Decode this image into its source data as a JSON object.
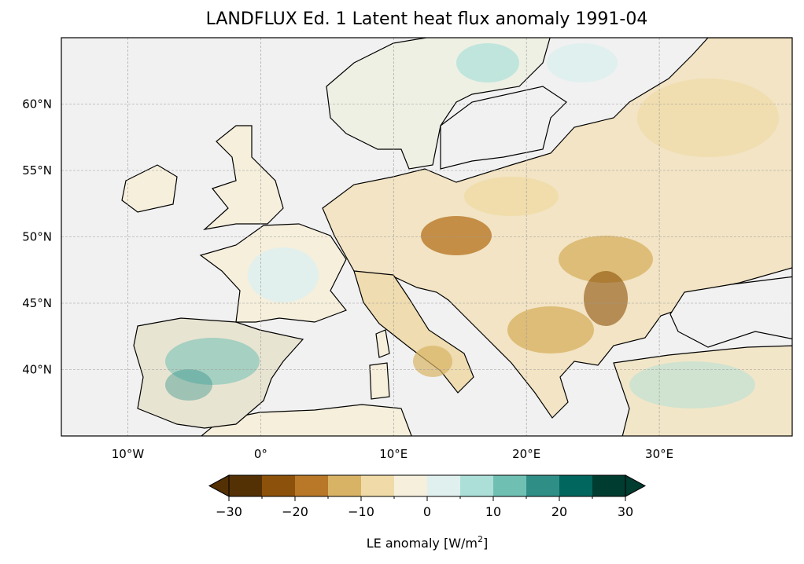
{
  "title": "LANDFLUX Ed. 1 Latent heat flux anomaly 1991-04",
  "map": {
    "lon_range": [
      -15,
      40
    ],
    "lat_range": [
      35,
      65
    ],
    "lon_ticks": [
      {
        "value": -10,
        "label": "10°W"
      },
      {
        "value": 0,
        "label": "0°"
      },
      {
        "value": 10,
        "label": "10°E"
      },
      {
        "value": 20,
        "label": "20°E"
      },
      {
        "value": 30,
        "label": "30°E"
      }
    ],
    "lat_ticks": [
      {
        "value": 40,
        "label": "40°N"
      },
      {
        "value": 45,
        "label": "45°N"
      },
      {
        "value": 50,
        "label": "50°N"
      },
      {
        "value": 55,
        "label": "55°N"
      },
      {
        "value": 60,
        "label": "60°N"
      }
    ],
    "sea_color": "#f1f1f1"
  },
  "colorbar": {
    "label": "LE anomaly [W/m",
    "label_sup": "2",
    "label_end": "]",
    "bounds": [
      -30,
      30
    ],
    "step": 5,
    "ticks": [
      {
        "value": -30,
        "label": "−30"
      },
      {
        "value": -20,
        "label": "−20"
      },
      {
        "value": -10,
        "label": "−10"
      },
      {
        "value": 0,
        "label": "0"
      },
      {
        "value": 10,
        "label": "10"
      },
      {
        "value": 20,
        "label": "20"
      },
      {
        "value": 30,
        "label": "30"
      }
    ],
    "colors": [
      "#543005",
      "#8c510a",
      "#b87828",
      "#d8b365",
      "#f0dba8",
      "#f5efdc",
      "#e0f0ee",
      "#acdfd8",
      "#6fc0b3",
      "#2f8f87",
      "#01665e",
      "#003c30"
    ]
  }
}
